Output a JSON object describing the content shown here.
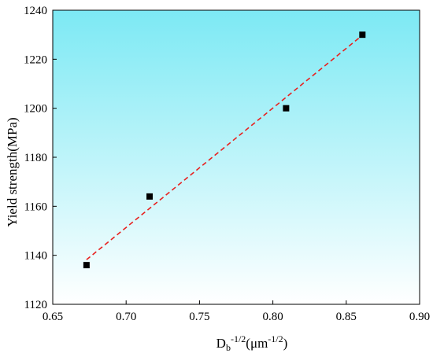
{
  "chart_data": {
    "type": "scatter",
    "title": "",
    "xlabel": {
      "base": "D",
      "sub": "b",
      "sup": "-1/2",
      "unit_open": "(μm",
      "unit_sup": "-1/2",
      "unit_close": ")"
    },
    "ylabel": "Yield strength(MPa)",
    "xlim": [
      0.65,
      0.9
    ],
    "ylim": [
      1120,
      1240
    ],
    "xticks": [
      "0.65",
      "0.70",
      "0.75",
      "0.80",
      "0.85",
      "0.90"
    ],
    "yticks": [
      "1120",
      "1140",
      "1160",
      "1180",
      "1200",
      "1220",
      "1240"
    ],
    "series": [
      {
        "points": [
          {
            "x": 0.673,
            "y": 1136
          },
          {
            "x": 0.716,
            "y": 1164
          },
          {
            "x": 0.809,
            "y": 1200
          },
          {
            "x": 0.861,
            "y": 1230
          }
        ],
        "marker": "square",
        "color": "#000000"
      }
    ],
    "fit_line": {
      "x": [
        0.673,
        0.861
      ],
      "y": [
        1138.2,
        1229.8
      ],
      "style": "dashed",
      "color": "#e8211f"
    },
    "background_gradient": [
      "#7ce9f4",
      "#ffffff"
    ],
    "grid": false,
    "legend": "none"
  }
}
